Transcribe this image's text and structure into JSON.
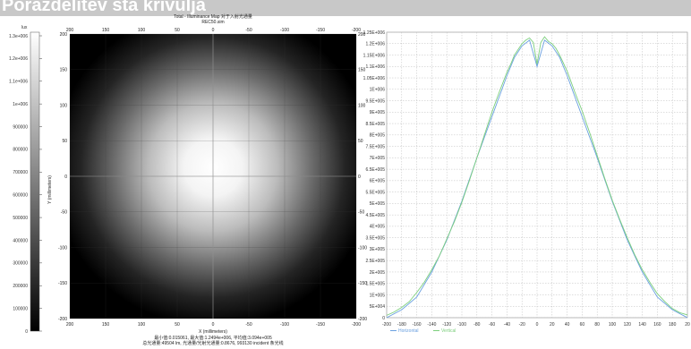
{
  "banner": {
    "title": "Porazdelitev sta krivulja"
  },
  "colorbar": {
    "unit": "lux",
    "labels": [
      "1.3e+006",
      "1.2e+006",
      "1.1e+006",
      "1e+006",
      "900000",
      "800000",
      "700000",
      "600000",
      "500000",
      "400000",
      "300000",
      "200000",
      "100000",
      "0"
    ],
    "colors": {
      "high": "#ffffff",
      "low": "#000000"
    }
  },
  "chart_data": [
    {
      "type": "heatmap",
      "title": "Total - Illuminance Map 对于入射光通量",
      "subtitle": "REC50.sim",
      "xlabel": "X (millimeters)",
      "ylabel": "Y (millimeters)",
      "xlim": [
        200,
        -200
      ],
      "ylim": [
        -200,
        200
      ],
      "x_ticks_top": [
        "200",
        "150",
        "100",
        "50",
        "0",
        "-50",
        "-100",
        "-150",
        "-200"
      ],
      "x_ticks_bottom": [
        "200",
        "150",
        "100",
        "50",
        "0",
        "-50",
        "-100",
        "-150",
        "-200"
      ],
      "y_ticks_left": [
        "200",
        "150",
        "100",
        "50",
        "0",
        "-50",
        "-100",
        "-150",
        "-200"
      ],
      "y_ticks_right": [
        "200",
        "150",
        "100",
        "50",
        "0",
        "-50",
        "-100",
        "-150",
        "-200"
      ],
      "center": [
        0,
        0
      ],
      "peak_value": 1249000,
      "stats_line1": "最小值:0.015061, 最大值:1.2494e+006, 平均值:3.094e+005",
      "stats_line2": "总光通量:49504 lm, 光通量/光射光通量:0.8676, 993130 incident 条光线"
    },
    {
      "type": "line",
      "xlim": [
        -200,
        200
      ],
      "ylim": [
        0,
        1250000
      ],
      "x_ticks": [
        "-200",
        "-180",
        "-160",
        "-140",
        "-120",
        "-100",
        "-80",
        "-60",
        "-40",
        "-20",
        "0",
        "20",
        "40",
        "60",
        "80",
        "100",
        "120",
        "140",
        "160",
        "180",
        "20"
      ],
      "y_ticks": [
        "0",
        "5E+004",
        "1E+005",
        "1.5E+005",
        "2E+005",
        "2.5E+005",
        "3E+005",
        "3.5E+005",
        "4E+005",
        "4.5E+005",
        "5E+005",
        "5.5E+005",
        "6E+005",
        "6.5E+005",
        "7E+005",
        "7.5E+005",
        "8E+005",
        "8.5E+005",
        "9E+005",
        "9.5E+005",
        "1E+006",
        "1.05E+006",
        "1.1E+006",
        "1.15E+006",
        "1.2E+006",
        "1.25E+006"
      ],
      "grid": true,
      "legend_position": "bottom-left",
      "series": [
        {
          "name": "Horizontal",
          "color": "#6aa0e0",
          "x": [
            -200,
            -180,
            -160,
            -140,
            -120,
            -100,
            -80,
            -60,
            -40,
            -30,
            -20,
            -10,
            0,
            10,
            20,
            30,
            40,
            60,
            80,
            100,
            120,
            140,
            160,
            180,
            200
          ],
          "values": [
            0,
            35000,
            90000,
            200000,
            340000,
            510000,
            700000,
            880000,
            1060000,
            1140000,
            1190000,
            1215000,
            1100000,
            1215000,
            1190000,
            1140000,
            1060000,
            880000,
            700000,
            510000,
            340000,
            200000,
            90000,
            35000,
            0
          ]
        },
        {
          "name": "Vertical",
          "color": "#7ccf7c",
          "x": [
            -200,
            -190,
            -180,
            -170,
            -160,
            -150,
            -140,
            -130,
            -120,
            -110,
            -100,
            -90,
            -80,
            -70,
            -60,
            -50,
            -40,
            -35,
            -30,
            -25,
            -20,
            -15,
            -10,
            -5,
            0,
            5,
            10,
            15,
            20,
            25,
            30,
            35,
            40,
            50,
            60,
            70,
            80,
            90,
            100,
            110,
            120,
            130,
            140,
            150,
            160,
            170,
            180,
            190,
            200
          ],
          "values": [
            10000,
            25000,
            45000,
            70000,
            110000,
            155000,
            210000,
            270000,
            345000,
            420000,
            505000,
            600000,
            700000,
            800000,
            900000,
            990000,
            1075000,
            1110000,
            1150000,
            1175000,
            1200000,
            1215000,
            1225000,
            1205000,
            1110000,
            1205000,
            1230000,
            1210000,
            1200000,
            1180000,
            1150000,
            1115000,
            1080000,
            990000,
            905000,
            810000,
            710000,
            610000,
            515000,
            430000,
            350000,
            275000,
            210000,
            155000,
            105000,
            70000,
            40000,
            22000,
            12000
          ]
        }
      ]
    }
  ]
}
